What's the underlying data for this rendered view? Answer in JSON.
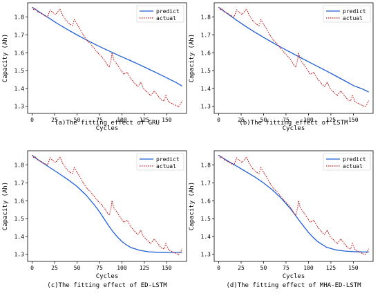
{
  "colors": {
    "predict": "#1f5fd6",
    "actual": "#c41a1a",
    "axis": "#000000"
  },
  "chart_data": [
    {
      "type": "line",
      "caption": "(a)The fitting effect of GRU",
      "xlabel": "Cycles",
      "ylabel": "Capacity (Ah)",
      "xlim": [
        -5,
        172
      ],
      "ylim": [
        1.26,
        1.88
      ],
      "xticks": [
        0,
        25,
        50,
        75,
        100,
        125,
        150
      ],
      "yticks": [
        1.3,
        1.4,
        1.5,
        1.6,
        1.7,
        1.8
      ],
      "legend_position": "top-right",
      "series": [
        {
          "name": "predict",
          "style": "solid",
          "x": [
            0,
            3,
            5,
            10,
            15,
            20,
            25,
            30,
            40,
            50,
            60,
            70,
            80,
            90,
            100,
            110,
            120,
            130,
            140,
            150,
            160,
            167
          ],
          "y": [
            1.855,
            1.845,
            1.838,
            1.822,
            1.806,
            1.79,
            1.774,
            1.758,
            1.728,
            1.7,
            1.673,
            1.647,
            1.623,
            1.6,
            1.577,
            1.555,
            1.532,
            1.508,
            1.484,
            1.459,
            1.434,
            1.414
          ]
        },
        {
          "name": "actual",
          "style": "dotted",
          "x": [
            0,
            2,
            4,
            6,
            10,
            14,
            17,
            20,
            23,
            26,
            29,
            31,
            34,
            38,
            42,
            45,
            47,
            50,
            53,
            57,
            61,
            65,
            69,
            73,
            77,
            81,
            84,
            86,
            88,
            89,
            91,
            94,
            98,
            102,
            106,
            110,
            114,
            118,
            121,
            124,
            128,
            132,
            136,
            140,
            144,
            147,
            149,
            152,
            156,
            160,
            163,
            165,
            167
          ],
          "y": [
            1.855,
            1.84,
            1.845,
            1.83,
            1.82,
            1.808,
            1.8,
            1.84,
            1.825,
            1.815,
            1.832,
            1.845,
            1.81,
            1.78,
            1.76,
            1.752,
            1.785,
            1.76,
            1.735,
            1.7,
            1.67,
            1.65,
            1.625,
            1.6,
            1.58,
            1.555,
            1.53,
            1.52,
            1.56,
            1.6,
            1.56,
            1.54,
            1.51,
            1.48,
            1.49,
            1.455,
            1.43,
            1.41,
            1.435,
            1.4,
            1.38,
            1.36,
            1.385,
            1.36,
            1.335,
            1.33,
            1.36,
            1.325,
            1.315,
            1.305,
            1.298,
            1.31,
            1.33
          ]
        }
      ]
    },
    {
      "type": "line",
      "caption": "(b)The fitting effect of LSTM",
      "xlabel": "Cycles",
      "ylabel": "Capacity (Ah)",
      "xlim": [
        -5,
        172
      ],
      "ylim": [
        1.26,
        1.88
      ],
      "xticks": [
        0,
        25,
        50,
        75,
        100,
        125,
        150
      ],
      "yticks": [
        1.3,
        1.4,
        1.5,
        1.6,
        1.7,
        1.8
      ],
      "legend_position": "top-right",
      "series": [
        {
          "name": "predict",
          "style": "solid",
          "x": [
            0,
            3,
            5,
            10,
            15,
            20,
            25,
            30,
            40,
            50,
            60,
            70,
            80,
            90,
            100,
            110,
            120,
            130,
            140,
            150,
            160,
            167
          ],
          "y": [
            1.855,
            1.843,
            1.836,
            1.818,
            1.8,
            1.782,
            1.765,
            1.748,
            1.716,
            1.686,
            1.657,
            1.629,
            1.602,
            1.576,
            1.55,
            1.524,
            1.498,
            1.471,
            1.444,
            1.416,
            1.397,
            1.38
          ]
        },
        {
          "name": "actual",
          "style": "dotted",
          "x": [
            0,
            2,
            4,
            6,
            10,
            14,
            17,
            20,
            23,
            26,
            29,
            31,
            34,
            38,
            42,
            45,
            47,
            50,
            53,
            57,
            61,
            65,
            69,
            73,
            77,
            81,
            84,
            86,
            88,
            89,
            91,
            94,
            98,
            102,
            106,
            110,
            114,
            118,
            121,
            124,
            128,
            132,
            136,
            140,
            144,
            147,
            149,
            152,
            156,
            160,
            163,
            165,
            167
          ],
          "y": [
            1.855,
            1.84,
            1.845,
            1.83,
            1.82,
            1.808,
            1.8,
            1.84,
            1.825,
            1.815,
            1.832,
            1.845,
            1.81,
            1.78,
            1.76,
            1.752,
            1.785,
            1.76,
            1.735,
            1.7,
            1.67,
            1.65,
            1.625,
            1.6,
            1.58,
            1.555,
            1.53,
            1.52,
            1.56,
            1.6,
            1.56,
            1.54,
            1.51,
            1.48,
            1.49,
            1.455,
            1.43,
            1.41,
            1.435,
            1.4,
            1.38,
            1.36,
            1.385,
            1.36,
            1.335,
            1.33,
            1.36,
            1.325,
            1.315,
            1.305,
            1.298,
            1.31,
            1.33
          ]
        }
      ]
    },
    {
      "type": "line",
      "caption": "(c)The fitting effect of ED-LSTM",
      "xlabel": "Cycles",
      "ylabel": "Capacity (Ah)",
      "xlim": [
        -5,
        172
      ],
      "ylim": [
        1.26,
        1.88
      ],
      "xticks": [
        0,
        25,
        50,
        75,
        100,
        125,
        150
      ],
      "yticks": [
        1.3,
        1.4,
        1.5,
        1.6,
        1.7,
        1.8
      ],
      "legend_position": "top-right",
      "series": [
        {
          "name": "predict",
          "style": "solid",
          "x": [
            0,
            5,
            10,
            20,
            30,
            40,
            50,
            60,
            70,
            75,
            80,
            85,
            90,
            95,
            100,
            105,
            110,
            120,
            130,
            140,
            150,
            160,
            167
          ],
          "y": [
            1.855,
            1.835,
            1.818,
            1.785,
            1.752,
            1.718,
            1.68,
            1.632,
            1.572,
            1.538,
            1.5,
            1.462,
            1.427,
            1.397,
            1.372,
            1.353,
            1.338,
            1.322,
            1.314,
            1.311,
            1.31,
            1.31,
            1.311
          ]
        },
        {
          "name": "actual",
          "style": "dotted",
          "x": [
            0,
            2,
            4,
            6,
            10,
            14,
            17,
            20,
            23,
            26,
            29,
            31,
            34,
            38,
            42,
            45,
            47,
            50,
            53,
            57,
            61,
            65,
            69,
            73,
            77,
            81,
            84,
            86,
            88,
            89,
            91,
            94,
            98,
            102,
            106,
            110,
            114,
            118,
            121,
            124,
            128,
            132,
            136,
            140,
            144,
            147,
            149,
            152,
            156,
            160,
            163,
            165,
            167
          ],
          "y": [
            1.855,
            1.84,
            1.845,
            1.83,
            1.82,
            1.808,
            1.8,
            1.84,
            1.825,
            1.815,
            1.832,
            1.845,
            1.81,
            1.78,
            1.76,
            1.752,
            1.785,
            1.76,
            1.735,
            1.7,
            1.67,
            1.65,
            1.625,
            1.6,
            1.58,
            1.555,
            1.53,
            1.52,
            1.56,
            1.6,
            1.56,
            1.54,
            1.51,
            1.48,
            1.49,
            1.455,
            1.43,
            1.41,
            1.435,
            1.4,
            1.38,
            1.36,
            1.385,
            1.36,
            1.335,
            1.33,
            1.36,
            1.325,
            1.315,
            1.305,
            1.298,
            1.31,
            1.33
          ]
        }
      ]
    },
    {
      "type": "line",
      "caption": "(d)The fitting effect of MHA-ED-LSTM",
      "xlabel": "Cycles",
      "ylabel": "Capacity (Ah)",
      "xlim": [
        -5,
        172
      ],
      "ylim": [
        1.26,
        1.88
      ],
      "xticks": [
        0,
        25,
        50,
        75,
        100,
        125,
        150
      ],
      "yticks": [
        1.3,
        1.4,
        1.5,
        1.6,
        1.7,
        1.8
      ],
      "legend_position": "top-right",
      "series": [
        {
          "name": "predict",
          "style": "solid",
          "x": [
            0,
            5,
            10,
            20,
            30,
            40,
            50,
            60,
            70,
            80,
            85,
            90,
            95,
            100,
            105,
            110,
            120,
            130,
            140,
            150,
            160,
            167
          ],
          "y": [
            1.855,
            1.838,
            1.823,
            1.794,
            1.764,
            1.734,
            1.7,
            1.66,
            1.612,
            1.555,
            1.522,
            1.488,
            1.455,
            1.423,
            1.396,
            1.372,
            1.34,
            1.325,
            1.318,
            1.315,
            1.313,
            1.313
          ]
        },
        {
          "name": "actual",
          "style": "dotted",
          "x": [
            0,
            2,
            4,
            6,
            10,
            14,
            17,
            20,
            23,
            26,
            29,
            31,
            34,
            38,
            42,
            45,
            47,
            50,
            53,
            57,
            61,
            65,
            69,
            73,
            77,
            81,
            84,
            86,
            88,
            89,
            91,
            94,
            98,
            102,
            106,
            110,
            114,
            118,
            121,
            124,
            128,
            132,
            136,
            140,
            144,
            147,
            149,
            152,
            156,
            160,
            163,
            165,
            167
          ],
          "y": [
            1.855,
            1.84,
            1.845,
            1.83,
            1.82,
            1.808,
            1.8,
            1.84,
            1.825,
            1.815,
            1.832,
            1.845,
            1.81,
            1.78,
            1.76,
            1.752,
            1.785,
            1.76,
            1.735,
            1.7,
            1.67,
            1.65,
            1.625,
            1.6,
            1.58,
            1.555,
            1.53,
            1.52,
            1.56,
            1.6,
            1.56,
            1.54,
            1.51,
            1.48,
            1.49,
            1.455,
            1.43,
            1.41,
            1.435,
            1.4,
            1.38,
            1.36,
            1.385,
            1.36,
            1.335,
            1.33,
            1.36,
            1.325,
            1.315,
            1.305,
            1.298,
            1.31,
            1.33
          ]
        }
      ]
    }
  ]
}
